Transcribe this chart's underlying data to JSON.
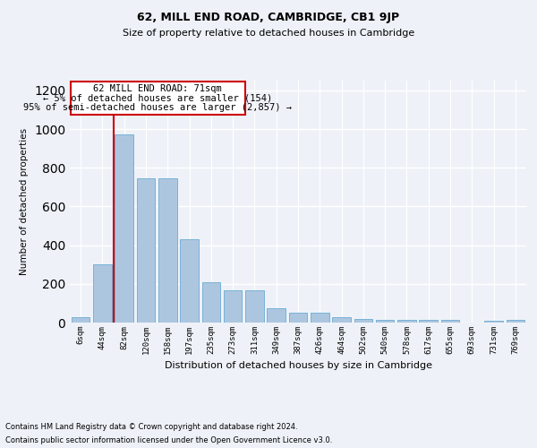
{
  "title1": "62, MILL END ROAD, CAMBRIDGE, CB1 9JP",
  "title2": "Size of property relative to detached houses in Cambridge",
  "xlabel": "Distribution of detached houses by size in Cambridge",
  "ylabel": "Number of detached properties",
  "footnote1": "Contains HM Land Registry data © Crown copyright and database right 2024.",
  "footnote2": "Contains public sector information licensed under the Open Government Licence v3.0.",
  "annotation_title": "62 MILL END ROAD: 71sqm",
  "annotation_line1": "← 5% of detached houses are smaller (154)",
  "annotation_line2": "95% of semi-detached houses are larger (2,857) →",
  "bar_color": "#adc6e0",
  "bar_edge_color": "#6aaad4",
  "vline_color": "#cc0000",
  "vline_x": 1.5,
  "categories": [
    "6sqm",
    "44sqm",
    "82sqm",
    "120sqm",
    "158sqm",
    "197sqm",
    "235sqm",
    "273sqm",
    "311sqm",
    "349sqm",
    "387sqm",
    "426sqm",
    "464sqm",
    "502sqm",
    "540sqm",
    "578sqm",
    "617sqm",
    "655sqm",
    "693sqm",
    "731sqm",
    "769sqm"
  ],
  "values": [
    27,
    300,
    970,
    745,
    745,
    430,
    210,
    165,
    165,
    75,
    50,
    50,
    30,
    20,
    15,
    15,
    15,
    15,
    0,
    10,
    15
  ],
  "ylim": [
    0,
    1250
  ],
  "yticks": [
    0,
    200,
    400,
    600,
    800,
    1000,
    1200
  ],
  "bg_color": "#eef2f8",
  "plot_bg_color": "#eef2f8",
  "grid_color": "#ffffff",
  "annotation_box_edge": "#cc0000"
}
